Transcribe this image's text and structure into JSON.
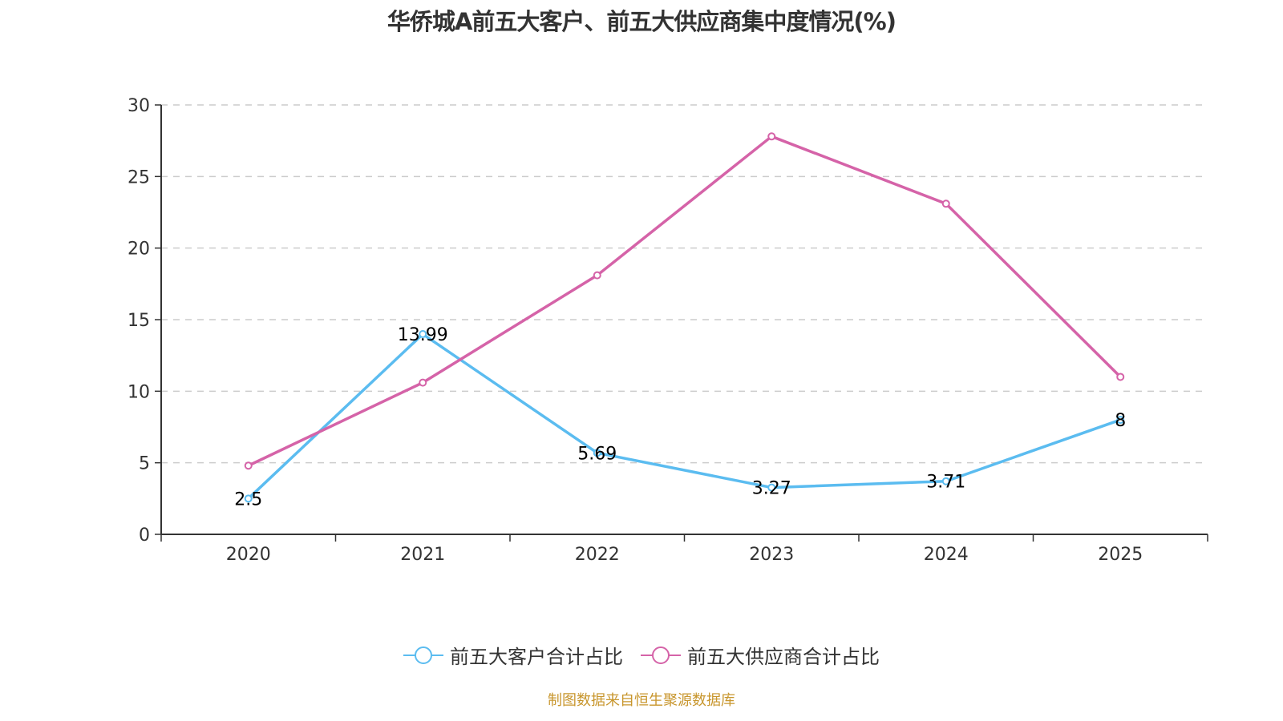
{
  "chart_data": {
    "type": "line",
    "title": "华侨城A前五大客户、前五大供应商集中度情况(%)",
    "xlabel": "",
    "ylabel": "",
    "categories": [
      "2020",
      "2021",
      "2022",
      "2023",
      "2024",
      "2025"
    ],
    "ylim": [
      0,
      30
    ],
    "yticks": [
      0,
      5,
      10,
      15,
      20,
      25,
      30
    ],
    "grid": true,
    "legend_position": "bottom-center",
    "series": [
      {
        "name": "前五大客户合计占比",
        "color": "#5bbcf0",
        "values": [
          2.5,
          13.99,
          5.69,
          3.27,
          3.71,
          8
        ],
        "labels": [
          "2.5",
          "13.99",
          "5.69",
          "3.27",
          "3.71",
          "8"
        ],
        "show_labels": true
      },
      {
        "name": "前五大供应商合计占比",
        "color": "#d563a8",
        "values": [
          4.8,
          10.6,
          18.1,
          27.8,
          23.1,
          11.0
        ],
        "show_labels": false
      }
    ]
  },
  "source_text": "制图数据来自恒生聚源数据库"
}
